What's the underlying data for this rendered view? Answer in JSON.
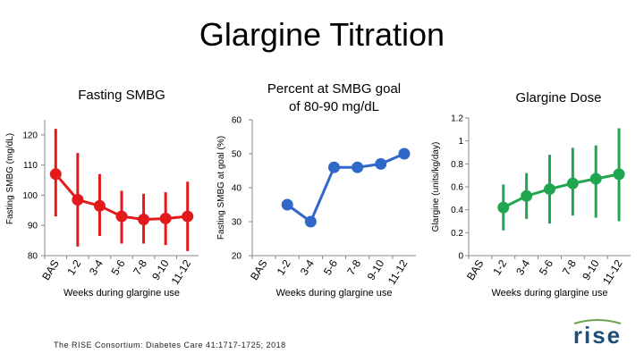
{
  "slide": {
    "title": "Glargine Titration",
    "citation": "The RISE Consortium: Diabetes Care 41:1717-1725; 2018",
    "logo_text": "rise"
  },
  "colors": {
    "red": "#e31a1c",
    "blue": "#2f68c7",
    "green": "#21a650",
    "grid": "#bdbdbd"
  },
  "chart_data": [
    {
      "type": "line",
      "title": "Fasting SMBG",
      "xlabel": "Weeks during glargine use",
      "ylabel": "Fasting SMBG (mg/dL)",
      "categories": [
        "BAS",
        "1-2",
        "3-4",
        "5-6",
        "7-8",
        "9-10",
        "11-12"
      ],
      "values": [
        107,
        98.5,
        96.5,
        93,
        92,
        92.3,
        93
      ],
      "error_low": [
        93,
        83,
        86.5,
        84,
        84,
        83.5,
        81.5
      ],
      "error_high": [
        122,
        114,
        107,
        101.5,
        100.5,
        101,
        104.5
      ],
      "ylim": [
        80,
        125
      ],
      "yticks": [
        80,
        90,
        100,
        110,
        120
      ],
      "color": "#e31a1c",
      "error_bars": true,
      "grid": false
    },
    {
      "type": "line",
      "title": "Percent at SMBG goal of 80-90 mg/dL",
      "title_lines": [
        "Percent at SMBG goal",
        "of 80-90 mg/dL"
      ],
      "xlabel": "Weeks during glargine use",
      "ylabel": "Fasting SMBG at goal (%)",
      "categories": [
        "BAS",
        "1-2",
        "3-4",
        "5-6",
        "7-8",
        "9-10",
        "11-12"
      ],
      "values": [
        null,
        35,
        30,
        46,
        46,
        47,
        50
      ],
      "ylim": [
        20,
        60
      ],
      "yticks": [
        20,
        30,
        40,
        50,
        60
      ],
      "color": "#2f68c7",
      "error_bars": false,
      "grid": false
    },
    {
      "type": "line",
      "title": "Glargine Dose",
      "xlabel": "Weeks during glargine use",
      "ylabel": "Glargine (units/kg/day)",
      "categories": [
        "BAS",
        "1-2",
        "3-4",
        "5-6",
        "7-8",
        "9-10",
        "11-12"
      ],
      "values": [
        null,
        0.42,
        0.52,
        0.58,
        0.63,
        0.67,
        0.71
      ],
      "error_low": [
        null,
        0.22,
        0.32,
        0.28,
        0.35,
        0.33,
        0.3
      ],
      "error_high": [
        null,
        0.62,
        0.72,
        0.88,
        0.94,
        0.96,
        1.11
      ],
      "ylim": [
        0,
        1.2
      ],
      "yticks": [
        0,
        0.2,
        0.4,
        0.6,
        0.8,
        1,
        1.2
      ],
      "color": "#21a650",
      "error_bars": true,
      "grid": false
    }
  ]
}
